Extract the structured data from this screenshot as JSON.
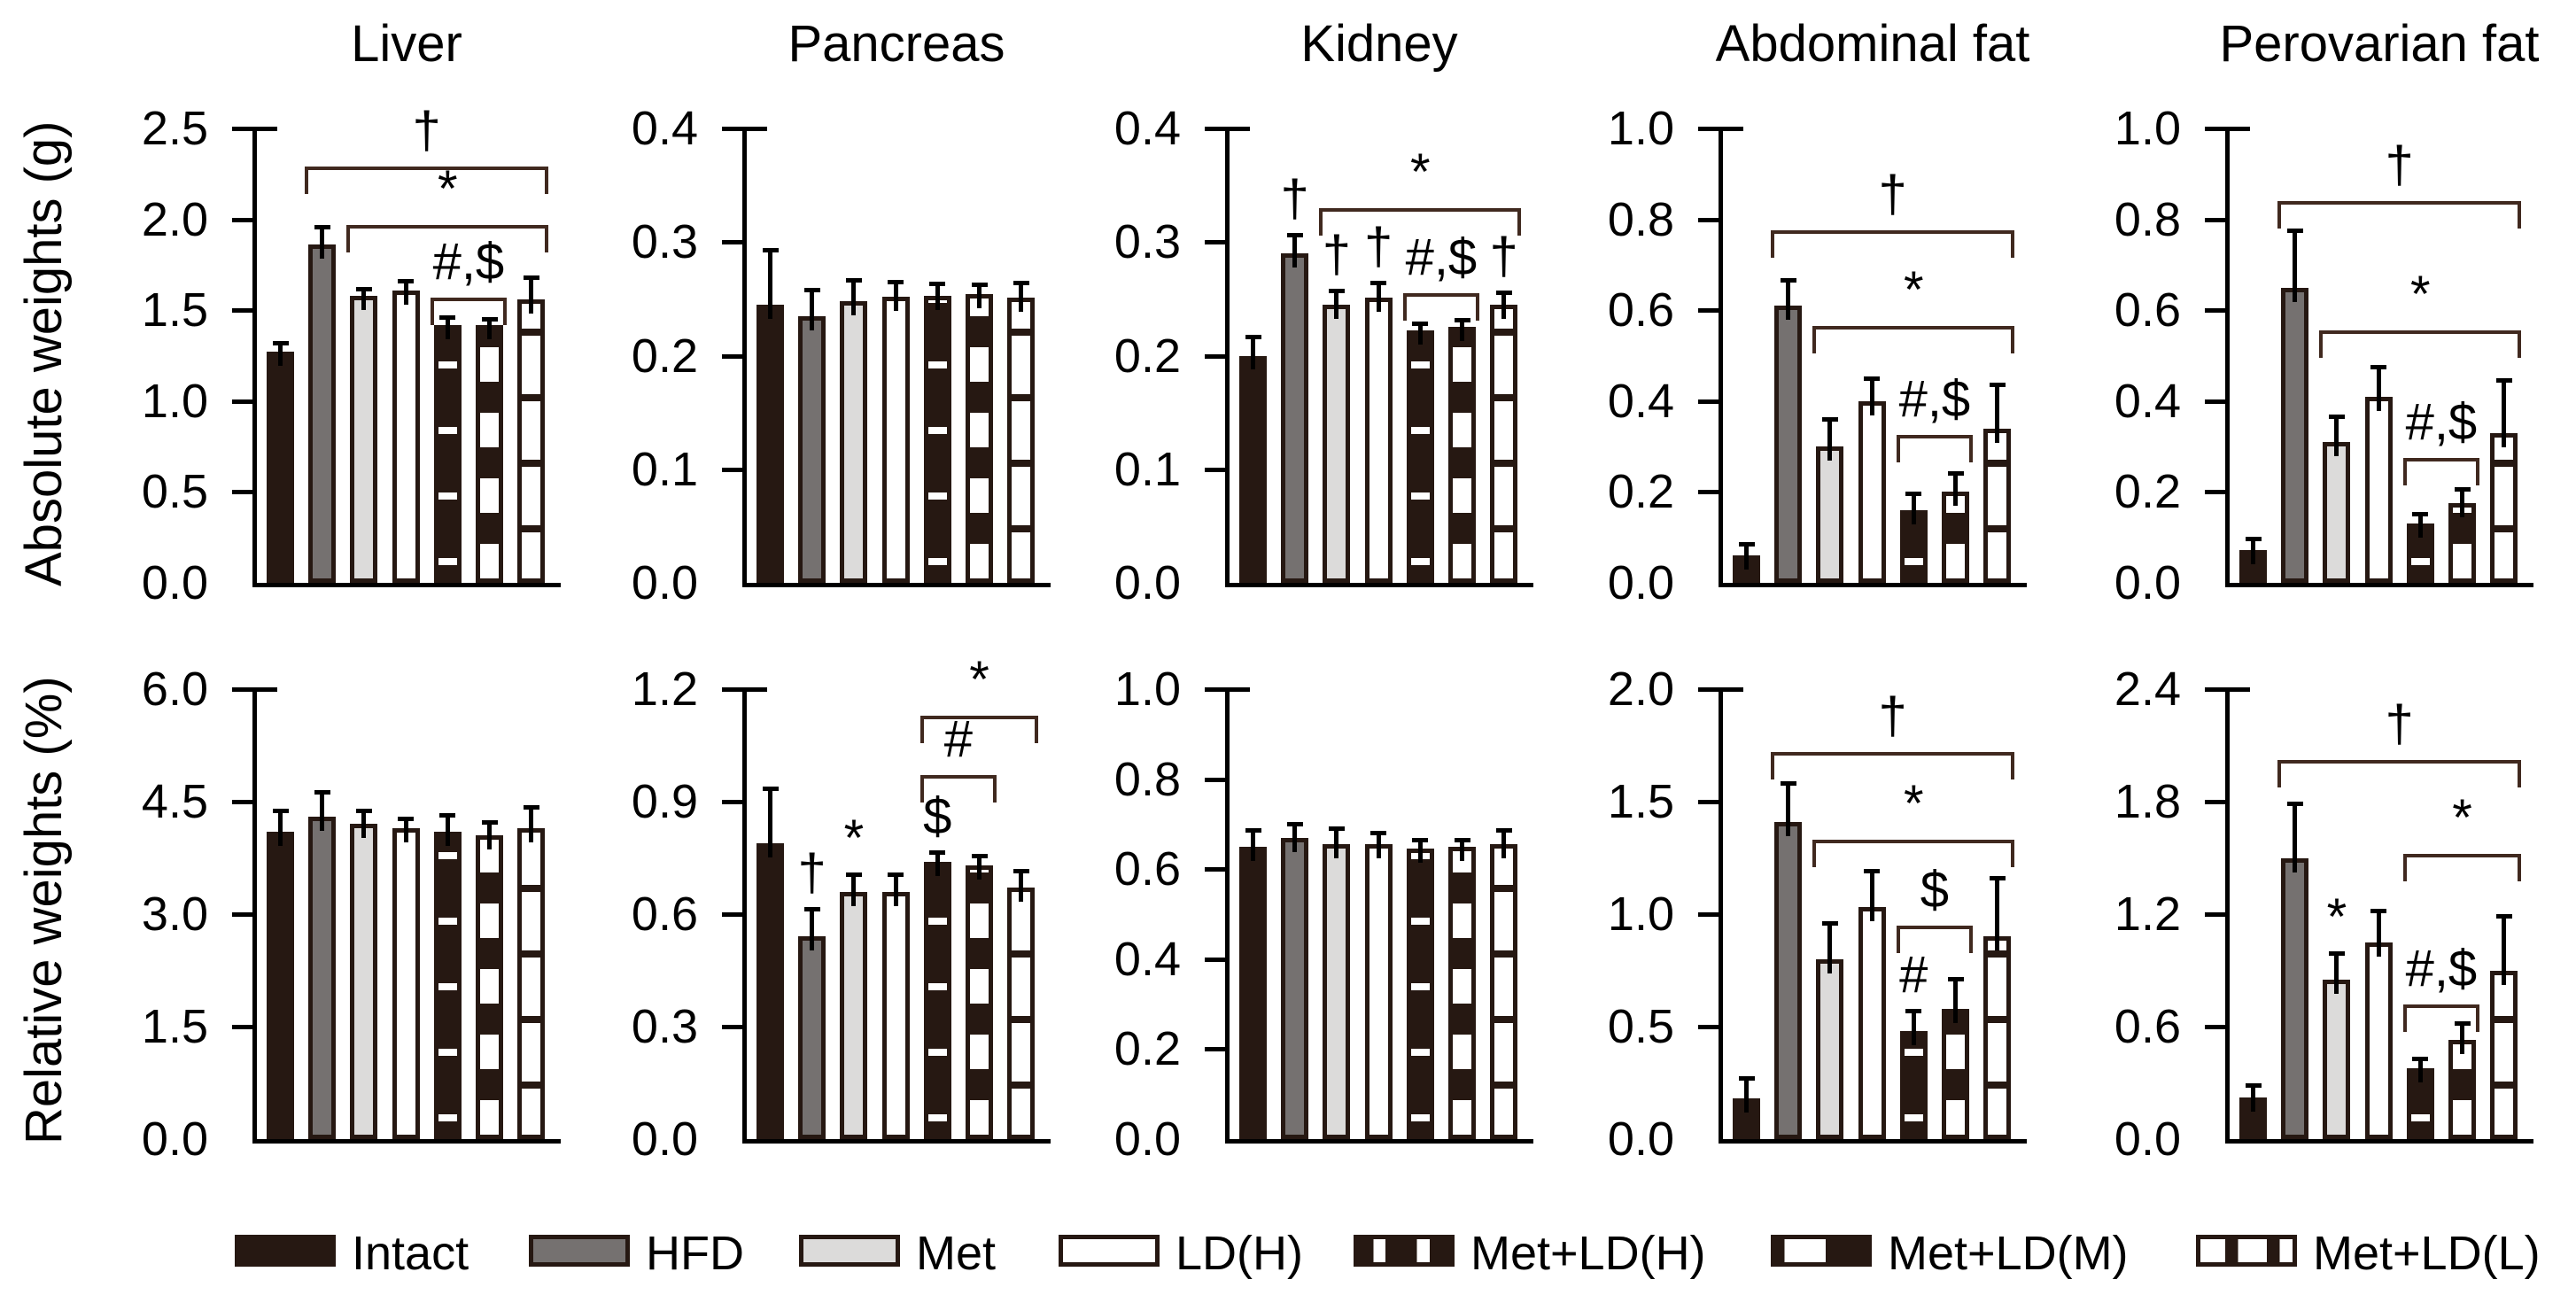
{
  "figure": {
    "row_labels": [
      "Absolute weights (g)",
      "Relative weights (%)"
    ],
    "legend": [
      "Intact",
      "HFD",
      "Met",
      "LD(H)",
      "Met+LD(H)",
      "Met+LD(M)",
      "Met+LD(L)"
    ],
    "group_patterns": [
      "solid-dark",
      "solid-gray",
      "solid-lightgray",
      "outline-white",
      "dark-with-white-stripes",
      "half-dark-white-bands",
      "white-with-dark-stripes"
    ],
    "colors": {
      "dark": "#261812",
      "gray": "#757170",
      "light_gray": "#dcdbda",
      "white": "#ffffff",
      "bracket_line": "#40291f",
      "axis_and_error": "#000000"
    }
  },
  "chart_data": [
    {
      "type": "bar",
      "title": "Liver",
      "row": "absolute",
      "ylabel": "Absolute weights (g)",
      "ylim": [
        0,
        2.5
      ],
      "yticks": [
        "0.0",
        "0.5",
        "1.0",
        "1.5",
        "2.0",
        "2.5"
      ],
      "categories": [
        "Intact",
        "HFD",
        "Met",
        "LD(H)",
        "Met+LD(H)",
        "Met+LD(M)",
        "Met+LD(L)"
      ],
      "values": [
        1.27,
        1.86,
        1.58,
        1.61,
        1.42,
        1.42,
        1.56
      ],
      "errors": [
        0.06,
        0.11,
        0.05,
        0.06,
        0.05,
        0.04,
        0.13
      ],
      "bar_symbols": [],
      "brackets": [
        {
          "from": 1,
          "to": 6,
          "value": 2.29,
          "text": "†"
        },
        {
          "from": 2,
          "to": 6,
          "value": 1.97,
          "text": "*"
        },
        {
          "from": 4,
          "to": 5,
          "value": 1.57,
          "text": "#,$"
        }
      ]
    },
    {
      "type": "bar",
      "title": "Pancreas",
      "row": "absolute",
      "ylabel": "Absolute weights (g)",
      "ylim": [
        0,
        0.4
      ],
      "yticks": [
        "0.0",
        "0.1",
        "0.2",
        "0.3",
        "0.4"
      ],
      "categories": [
        "Intact",
        "HFD",
        "Met",
        "LD(H)",
        "Met+LD(H)",
        "Met+LD(M)",
        "Met+LD(L)"
      ],
      "values": [
        0.245,
        0.235,
        0.248,
        0.252,
        0.253,
        0.254,
        0.251
      ],
      "errors": [
        0.05,
        0.025,
        0.02,
        0.015,
        0.012,
        0.01,
        0.015
      ],
      "bar_symbols": [],
      "brackets": []
    },
    {
      "type": "bar",
      "title": "Kidney",
      "row": "absolute",
      "ylabel": "Absolute weights (g)",
      "ylim": [
        0,
        0.4
      ],
      "yticks": [
        "0.0",
        "0.1",
        "0.2",
        "0.3",
        "0.4"
      ],
      "categories": [
        "Intact",
        "HFD",
        "Met",
        "LD(H)",
        "Met+LD(H)",
        "Met+LD(M)",
        "Met+LD(L)"
      ],
      "values": [
        0.2,
        0.29,
        0.245,
        0.251,
        0.222,
        0.225,
        0.245
      ],
      "errors": [
        0.018,
        0.018,
        0.014,
        0.015,
        0.008,
        0.008,
        0.012
      ],
      "bar_symbols": [
        {
          "bar": 1,
          "text": "†"
        },
        {
          "bar": 2,
          "text": "†"
        },
        {
          "bar": 3,
          "text": "†"
        },
        {
          "bar": 6,
          "text": "†"
        }
      ],
      "brackets": [
        {
          "from": 2,
          "to": 6,
          "value": 0.33,
          "text": "*"
        },
        {
          "from": 4,
          "to": 5,
          "value": 0.255,
          "text": "#,$"
        }
      ]
    },
    {
      "type": "bar",
      "title": "Abdominal fat",
      "row": "absolute",
      "ylabel": "Absolute weights (g)",
      "ylim": [
        0,
        1.0
      ],
      "yticks": [
        "0.0",
        "0.2",
        "0.4",
        "0.6",
        "0.8",
        "1.0"
      ],
      "categories": [
        "Intact",
        "HFD",
        "Met",
        "LD(H)",
        "Met+LD(H)",
        "Met+LD(M)",
        "Met+LD(L)"
      ],
      "values": [
        0.06,
        0.61,
        0.3,
        0.4,
        0.16,
        0.2,
        0.34
      ],
      "errors": [
        0.03,
        0.06,
        0.065,
        0.055,
        0.04,
        0.045,
        0.1
      ],
      "bar_symbols": [],
      "brackets": [
        {
          "from": 1,
          "to": 6,
          "value": 0.775,
          "text": "†"
        },
        {
          "from": 2,
          "to": 6,
          "value": 0.565,
          "text": "*"
        },
        {
          "from": 4,
          "to": 5,
          "value": 0.325,
          "text": "#,$"
        }
      ]
    },
    {
      "type": "bar",
      "title": "Perovarian fat",
      "row": "absolute",
      "ylabel": "Absolute weights (g)",
      "ylim": [
        0,
        1.0
      ],
      "yticks": [
        "0.0",
        "0.2",
        "0.4",
        "0.6",
        "0.8",
        "1.0"
      ],
      "categories": [
        "Intact",
        "HFD",
        "Met",
        "LD(H)",
        "Met+LD(H)",
        "Met+LD(M)",
        "Met+LD(L)"
      ],
      "values": [
        0.072,
        0.65,
        0.31,
        0.41,
        0.13,
        0.175,
        0.33
      ],
      "errors": [
        0.029,
        0.13,
        0.06,
        0.07,
        0.025,
        0.035,
        0.12
      ],
      "bar_symbols": [],
      "brackets": [
        {
          "from": 1,
          "to": 6,
          "value": 0.84,
          "text": "†"
        },
        {
          "from": 2,
          "to": 6,
          "value": 0.555,
          "text": "*"
        },
        {
          "from": 4,
          "to": 5,
          "value": 0.275,
          "text": "#,$"
        }
      ]
    },
    {
      "type": "bar",
      "title": "Liver",
      "row": "relative",
      "ylabel": "Relative weights (%)",
      "ylim": [
        0,
        6.0
      ],
      "yticks": [
        "0.0",
        "1.5",
        "3.0",
        "4.5",
        "6.0"
      ],
      "categories": [
        "Intact",
        "HFD",
        "Met",
        "LD(H)",
        "Met+LD(H)",
        "Met+LD(M)",
        "Met+LD(L)"
      ],
      "values": [
        4.1,
        4.3,
        4.2,
        4.15,
        4.1,
        4.05,
        4.15
      ],
      "errors": [
        0.3,
        0.35,
        0.2,
        0.15,
        0.25,
        0.2,
        0.3
      ],
      "bar_symbols": [],
      "brackets": []
    },
    {
      "type": "bar",
      "title": "Pancreas",
      "row": "relative",
      "ylabel": "Relative weights (%)",
      "ylim": [
        0,
        1.2
      ],
      "yticks": [
        "0.0",
        "0.3",
        "0.6",
        "0.9",
        "1.2"
      ],
      "categories": [
        "Intact",
        "HFD",
        "Met",
        "LD(H)",
        "Met+LD(H)",
        "Met+LD(M)",
        "Met+LD(L)"
      ],
      "values": [
        0.79,
        0.54,
        0.66,
        0.66,
        0.74,
        0.73,
        0.67
      ],
      "errors": [
        0.15,
        0.08,
        0.05,
        0.05,
        0.03,
        0.03,
        0.05
      ],
      "bar_symbols": [
        {
          "bar": 1,
          "text": "†"
        },
        {
          "bar": 2,
          "text": "*"
        },
        {
          "bar": 4,
          "text": "$"
        }
      ],
      "brackets": [
        {
          "from": 4,
          "to": 6,
          "value": 1.13,
          "text": "*"
        },
        {
          "from": 4,
          "to": 5,
          "value": 0.97,
          "text": "#"
        }
      ]
    },
    {
      "type": "bar",
      "title": "Kidney",
      "row": "relative",
      "ylabel": "Relative weights (%)",
      "ylim": [
        0,
        1.0
      ],
      "yticks": [
        "0.0",
        "0.2",
        "0.4",
        "0.6",
        "0.8",
        "1.0"
      ],
      "categories": [
        "Intact",
        "HFD",
        "Met",
        "LD(H)",
        "Met+LD(H)",
        "Met+LD(M)",
        "Met+LD(L)"
      ],
      "values": [
        0.65,
        0.67,
        0.655,
        0.655,
        0.645,
        0.65,
        0.655
      ],
      "errors": [
        0.04,
        0.035,
        0.04,
        0.03,
        0.025,
        0.02,
        0.035
      ],
      "bar_symbols": [],
      "brackets": []
    },
    {
      "type": "bar",
      "title": "Abdominal fat",
      "row": "relative",
      "ylabel": "Relative weights (%)",
      "ylim": [
        0,
        2.0
      ],
      "yticks": [
        "0.0",
        "0.5",
        "1.0",
        "1.5",
        "2.0"
      ],
      "categories": [
        "Intact",
        "HFD",
        "Met",
        "LD(H)",
        "Met+LD(H)",
        "Met+LD(M)",
        "Met+LD(L)"
      ],
      "values": [
        0.18,
        1.41,
        0.8,
        1.03,
        0.48,
        0.58,
        0.9
      ],
      "errors": [
        0.1,
        0.18,
        0.17,
        0.17,
        0.1,
        0.14,
        0.27
      ],
      "bar_symbols": [
        {
          "bar": 4,
          "text": "#"
        }
      ],
      "brackets": [
        {
          "from": 1,
          "to": 6,
          "value": 1.72,
          "text": "†"
        },
        {
          "from": 2,
          "to": 6,
          "value": 1.33,
          "text": "*"
        },
        {
          "from": 4,
          "to": 5,
          "value": 0.95,
          "text": "$"
        }
      ]
    },
    {
      "type": "bar",
      "title": "Perovarian fat",
      "row": "relative",
      "ylabel": "Relative weights (%)",
      "ylim": [
        0,
        2.4
      ],
      "yticks": [
        "0.0",
        "0.6",
        "1.2",
        "1.8",
        "2.4"
      ],
      "categories": [
        "Intact",
        "HFD",
        "Met",
        "LD(H)",
        "Met+LD(H)",
        "Met+LD(M)",
        "Met+LD(L)"
      ],
      "values": [
        0.22,
        1.5,
        0.85,
        1.05,
        0.38,
        0.53,
        0.9
      ],
      "errors": [
        0.08,
        0.3,
        0.15,
        0.18,
        0.06,
        0.1,
        0.3
      ],
      "bar_symbols": [
        {
          "bar": 2,
          "text": "*"
        }
      ],
      "brackets": [
        {
          "from": 1,
          "to": 6,
          "value": 2.02,
          "text": "†"
        },
        {
          "from": 4,
          "to": 6,
          "value": 1.52,
          "text": "*"
        },
        {
          "from": 4,
          "to": 5,
          "value": 0.72,
          "text": "#,$"
        }
      ]
    }
  ]
}
